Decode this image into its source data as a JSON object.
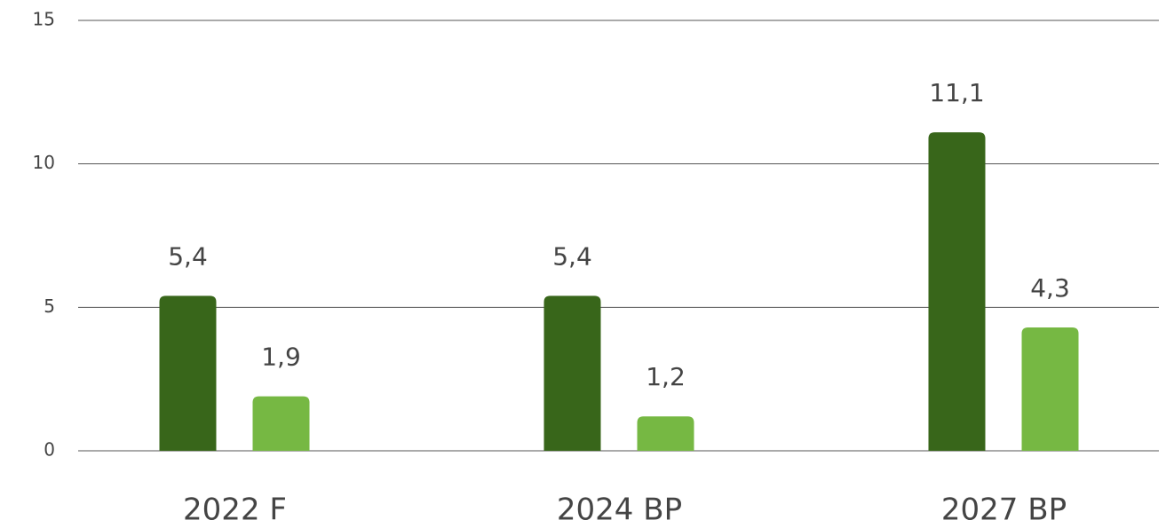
{
  "chart_data": {
    "type": "bar",
    "categories": [
      "2022 F",
      "2024 BP",
      "2027 BP"
    ],
    "series": [
      {
        "color": "#38661a",
        "values": [
          5.4,
          5.4,
          11.1
        ],
        "value_labels": [
          "5,4",
          "5,4",
          "11,1"
        ]
      },
      {
        "color": "#76b843",
        "values": [
          1.9,
          1.2,
          4.3
        ],
        "value_labels": [
          "1,9",
          "1,2",
          "4,3"
        ]
      }
    ],
    "ylim": [
      0,
      15
    ],
    "yticks": [
      0,
      5,
      10,
      15
    ],
    "grid": true
  }
}
